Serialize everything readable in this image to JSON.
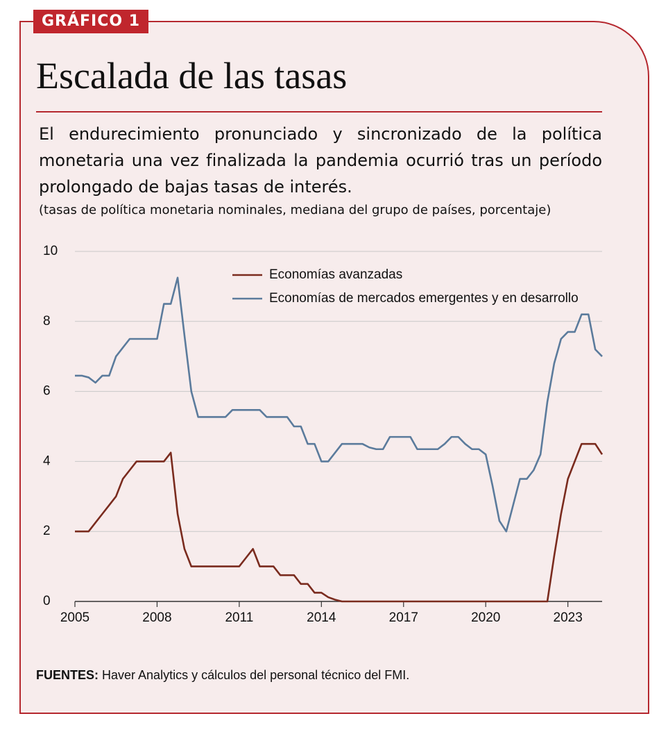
{
  "chart_data": {
    "type": "line",
    "label": "GRÁFICO 1",
    "title": "Escalada de las tasas",
    "subtitle": "El endurecimiento pronunciado y sincronizado de la política monetaria una vez finalizada la pandemia ocurrió tras un período prolongado de bajas tasas de interés.",
    "note": "(tasas de política monetaria nominales, mediana del grupo de países, porcentaje)",
    "source": {
      "label": "FUENTES:",
      "text": "Haver Analytics y cálculos del personal técnico del FMI."
    },
    "x": [
      2005,
      2005.25,
      2005.5,
      2005.75,
      2006,
      2006.25,
      2006.5,
      2006.75,
      2007,
      2007.25,
      2007.5,
      2007.75,
      2008,
      2008.25,
      2008.5,
      2008.75,
      2009,
      2009.25,
      2009.5,
      2009.75,
      2010,
      2010.25,
      2010.5,
      2010.75,
      2011,
      2011.25,
      2011.5,
      2011.75,
      2012,
      2012.25,
      2012.5,
      2012.75,
      2013,
      2013.25,
      2013.5,
      2013.75,
      2014,
      2014.25,
      2014.5,
      2014.75,
      2015,
      2015.25,
      2015.5,
      2015.75,
      2016,
      2016.25,
      2016.5,
      2016.75,
      2017,
      2017.25,
      2017.5,
      2017.75,
      2018,
      2018.25,
      2018.5,
      2018.75,
      2019,
      2019.25,
      2019.5,
      2019.75,
      2020,
      2020.25,
      2020.5,
      2020.75,
      2021,
      2021.25,
      2021.5,
      2021.75,
      2022,
      2022.25,
      2022.5,
      2022.75,
      2023,
      2023.25,
      2023.5,
      2023.75,
      2024,
      2024.25
    ],
    "series": [
      {
        "name": "Economías avanzadas",
        "color": "#7a2b1e",
        "values": [
          2.0,
          2.0,
          2.0,
          2.25,
          2.5,
          2.75,
          3.0,
          3.5,
          3.75,
          4.0,
          4.0,
          4.0,
          4.0,
          4.0,
          4.25,
          2.5,
          1.5,
          1.0,
          1.0,
          1.0,
          1.0,
          1.0,
          1.0,
          1.0,
          1.0,
          1.25,
          1.5,
          1.0,
          1.0,
          1.0,
          0.75,
          0.75,
          0.75,
          0.5,
          0.5,
          0.25,
          0.25,
          0.12,
          0.05,
          0,
          0,
          0,
          0,
          0,
          0,
          0,
          0,
          0,
          0,
          0,
          0,
          0,
          0,
          0,
          0,
          0,
          0,
          0,
          0,
          0,
          0,
          0,
          0,
          0,
          0,
          0,
          0,
          0,
          0,
          0,
          1.3,
          2.5,
          3.5,
          4.0,
          4.5,
          4.5,
          4.5,
          4.2
        ]
      },
      {
        "name": "Economías de mercados emergentes y en desarrollo",
        "color": "#5b7b9c",
        "values": [
          6.45,
          6.45,
          6.4,
          6.25,
          6.45,
          6.45,
          7.0,
          7.25,
          7.5,
          7.5,
          7.5,
          7.5,
          7.5,
          8.5,
          8.5,
          9.25,
          7.6,
          6.0,
          5.27,
          5.27,
          5.27,
          5.27,
          5.27,
          5.47,
          5.47,
          5.47,
          5.47,
          5.47,
          5.27,
          5.27,
          5.27,
          5.27,
          5.0,
          5.0,
          4.5,
          4.5,
          4.0,
          4.0,
          4.25,
          4.5,
          4.5,
          4.5,
          4.5,
          4.4,
          4.35,
          4.35,
          4.7,
          4.7,
          4.7,
          4.7,
          4.35,
          4.35,
          4.35,
          4.35,
          4.5,
          4.7,
          4.7,
          4.5,
          4.35,
          4.35,
          4.2,
          3.3,
          2.3,
          2.0,
          2.75,
          3.5,
          3.5,
          3.75,
          4.2,
          5.7,
          6.8,
          7.5,
          7.7,
          7.7,
          8.2,
          8.2,
          7.2,
          7.0
        ]
      }
    ],
    "xlim": [
      2005,
      2024.25
    ],
    "xticks": [
      2005,
      2008,
      2011,
      2014,
      2017,
      2020,
      2023
    ],
    "ylim": [
      0,
      10
    ],
    "yticks": [
      0,
      2,
      4,
      6,
      8,
      10
    ],
    "grid": true
  }
}
